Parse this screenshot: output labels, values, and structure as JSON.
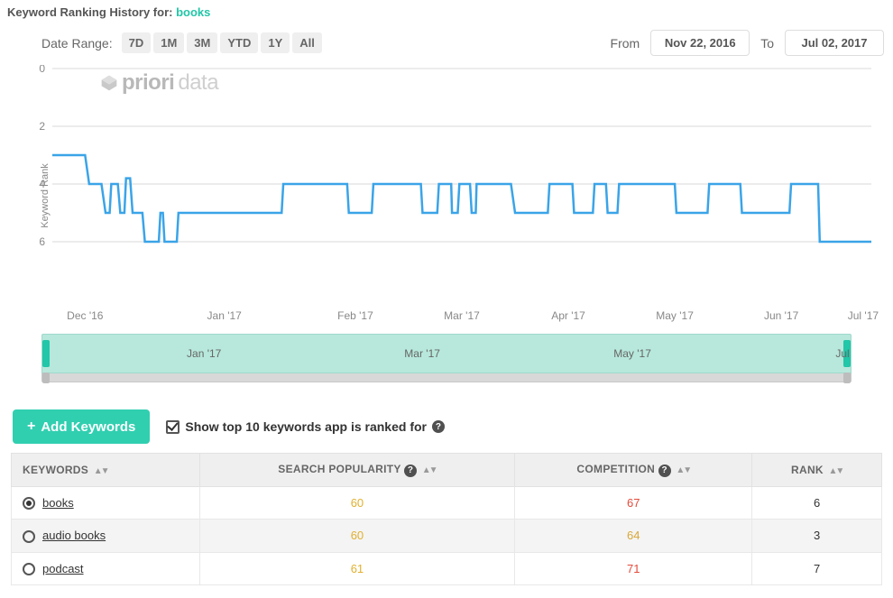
{
  "header": {
    "title_prefix": "Keyword Ranking History for:",
    "keyword": "books"
  },
  "range": {
    "label": "Date Range:",
    "buttons": [
      "7D",
      "1M",
      "3M",
      "YTD",
      "1Y",
      "All"
    ],
    "from_label": "From",
    "to_label": "To",
    "from_date": "Nov 22, 2016",
    "to_date": "Jul 02, 2017"
  },
  "watermark": {
    "text_bold": "priori",
    "text_light": "data"
  },
  "chart": {
    "type": "line-step",
    "y_label": "Keyword Rank",
    "y_ticks": [
      0,
      2,
      4,
      6
    ],
    "y_min": 0,
    "y_max": 8,
    "line_color": "#3aa4e8",
    "grid_color": "#d8d8d8",
    "axis_text_color": "#888888",
    "x_labels": [
      "Dec '16",
      "Jan '17",
      "Feb '17",
      "Mar '17",
      "Apr '17",
      "May '17",
      "Jun '17",
      "Jul '17"
    ],
    "x_positions_pct": [
      4,
      21,
      37,
      50,
      63,
      76,
      89,
      99
    ],
    "series": [
      {
        "x": 0.0,
        "r": 3
      },
      {
        "x": 0.04,
        "r": 3
      },
      {
        "x": 0.045,
        "r": 4
      },
      {
        "x": 0.06,
        "r": 4
      },
      {
        "x": 0.065,
        "r": 5
      },
      {
        "x": 0.07,
        "r": 5
      },
      {
        "x": 0.072,
        "r": 4
      },
      {
        "x": 0.08,
        "r": 4
      },
      {
        "x": 0.083,
        "r": 5
      },
      {
        "x": 0.088,
        "r": 5
      },
      {
        "x": 0.09,
        "r": 3.8
      },
      {
        "x": 0.095,
        "r": 3.8
      },
      {
        "x": 0.098,
        "r": 5
      },
      {
        "x": 0.11,
        "r": 5
      },
      {
        "x": 0.113,
        "r": 6
      },
      {
        "x": 0.13,
        "r": 6
      },
      {
        "x": 0.132,
        "r": 5
      },
      {
        "x": 0.135,
        "r": 5
      },
      {
        "x": 0.137,
        "r": 6
      },
      {
        "x": 0.152,
        "r": 6
      },
      {
        "x": 0.154,
        "r": 5
      },
      {
        "x": 0.28,
        "r": 5
      },
      {
        "x": 0.282,
        "r": 4
      },
      {
        "x": 0.36,
        "r": 4
      },
      {
        "x": 0.362,
        "r": 5
      },
      {
        "x": 0.39,
        "r": 5
      },
      {
        "x": 0.392,
        "r": 4
      },
      {
        "x": 0.45,
        "r": 4
      },
      {
        "x": 0.452,
        "r": 5
      },
      {
        "x": 0.47,
        "r": 5
      },
      {
        "x": 0.472,
        "r": 4
      },
      {
        "x": 0.487,
        "r": 4
      },
      {
        "x": 0.488,
        "r": 5
      },
      {
        "x": 0.495,
        "r": 5
      },
      {
        "x": 0.497,
        "r": 4
      },
      {
        "x": 0.51,
        "r": 4
      },
      {
        "x": 0.512,
        "r": 5
      },
      {
        "x": 0.517,
        "r": 5
      },
      {
        "x": 0.518,
        "r": 4
      },
      {
        "x": 0.56,
        "r": 4
      },
      {
        "x": 0.565,
        "r": 5
      },
      {
        "x": 0.605,
        "r": 5
      },
      {
        "x": 0.607,
        "r": 4
      },
      {
        "x": 0.635,
        "r": 4
      },
      {
        "x": 0.637,
        "r": 5
      },
      {
        "x": 0.66,
        "r": 5
      },
      {
        "x": 0.662,
        "r": 4
      },
      {
        "x": 0.676,
        "r": 4
      },
      {
        "x": 0.678,
        "r": 5
      },
      {
        "x": 0.69,
        "r": 5
      },
      {
        "x": 0.692,
        "r": 4
      },
      {
        "x": 0.76,
        "r": 4
      },
      {
        "x": 0.762,
        "r": 5
      },
      {
        "x": 0.8,
        "r": 5
      },
      {
        "x": 0.802,
        "r": 4
      },
      {
        "x": 0.84,
        "r": 4
      },
      {
        "x": 0.842,
        "r": 5
      },
      {
        "x": 0.9,
        "r": 5
      },
      {
        "x": 0.902,
        "r": 4
      },
      {
        "x": 0.935,
        "r": 4
      },
      {
        "x": 0.937,
        "r": 6
      },
      {
        "x": 1.0,
        "r": 6
      }
    ]
  },
  "brusher": {
    "labels": [
      "Jan '17",
      "Mar '17",
      "May '17",
      "Jul"
    ],
    "positions_pct": [
      20,
      47,
      73,
      99
    ]
  },
  "actions": {
    "add_label": "Add Keywords",
    "show_top_label": "Show top 10 keywords app is ranked for"
  },
  "table": {
    "columns": [
      "KEYWORDS",
      "SEARCH POPULARITY",
      "COMPETITION",
      "RANK"
    ],
    "rows": [
      {
        "keyword": "books",
        "popularity": 60,
        "competition": 67,
        "comp_color": "#e44b3b",
        "rank": 6,
        "selected": true
      },
      {
        "keyword": "audio books",
        "popularity": 60,
        "competition": 64,
        "comp_color": "#d9a83a",
        "rank": 3,
        "selected": false
      },
      {
        "keyword": "podcast",
        "popularity": 61,
        "competition": 71,
        "comp_color": "#e44b3b",
        "rank": 7,
        "selected": false
      }
    ]
  },
  "colors": {
    "accent": "#22c6a8",
    "popularity": "#e0b030"
  }
}
